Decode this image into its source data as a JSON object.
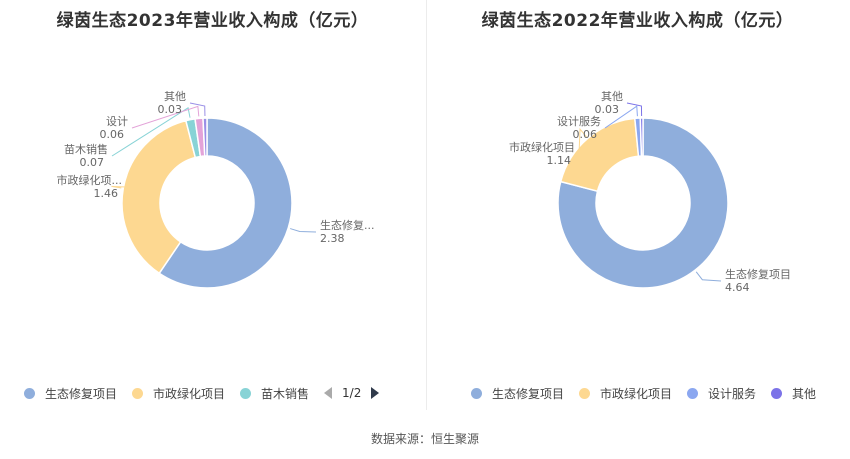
{
  "source": "数据来源：恒生聚源",
  "chart_data": [
    {
      "type": "donut",
      "title": "绿茵生态2023年营业收入构成（亿元）",
      "series": [
        {
          "name": "生态修复项目",
          "label": "生态修复...",
          "value": 2.38,
          "color": "#8faedc"
        },
        {
          "name": "市政绿化项目",
          "label": "市政绿化项...",
          "value": 1.46,
          "color": "#fdd891"
        },
        {
          "name": "苗木销售",
          "label": "苗木销售",
          "value": 0.07,
          "color": "#88d3d6"
        },
        {
          "name": "设计",
          "label": "设计",
          "value": 0.06,
          "color": "#e3a3d8"
        },
        {
          "name": "其他",
          "label": "其他",
          "value": 0.03,
          "color": "#9a8fe6"
        }
      ],
      "legend": {
        "items": [
          "生态修复项目",
          "市政绿化项目",
          "苗木销售"
        ],
        "page": "1/2"
      }
    },
    {
      "type": "donut",
      "title": "绿茵生态2022年营业收入构成（亿元）",
      "series": [
        {
          "name": "生态修复项目",
          "label": "生态修复项目",
          "value": 4.64,
          "color": "#8faedc"
        },
        {
          "name": "市政绿化项目",
          "label": "市政绿化项目",
          "value": 1.14,
          "color": "#fdd891"
        },
        {
          "name": "设计服务",
          "label": "设计服务",
          "value": 0.06,
          "color": "#8ba7f0"
        },
        {
          "name": "其他",
          "label": "其他",
          "value": 0.03,
          "color": "#7c73e8"
        }
      ],
      "legend": {
        "items": [
          "生态修复项目",
          "市政绿化项目",
          "设计服务",
          "其他"
        ]
      }
    }
  ]
}
